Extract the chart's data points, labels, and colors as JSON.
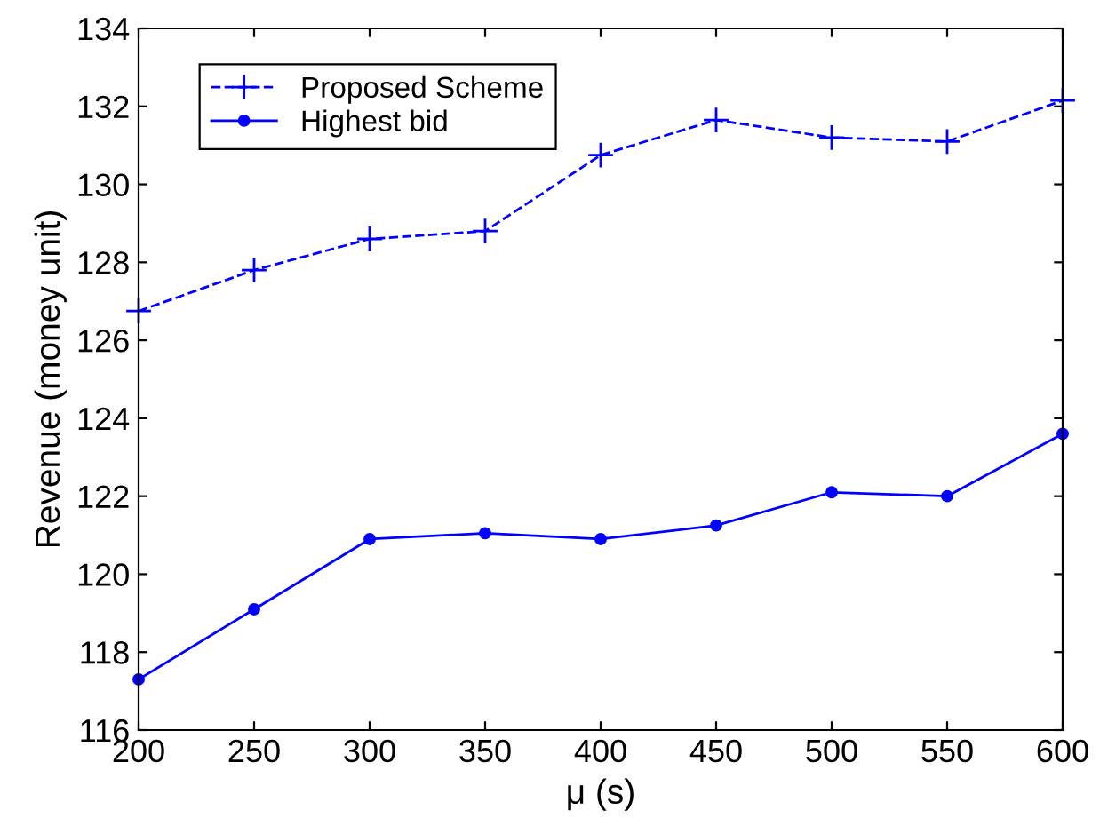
{
  "chart_data": {
    "type": "line",
    "xlabel": "μ (s)",
    "ylabel": "Revenue (money unit)",
    "x": [
      200,
      250,
      300,
      350,
      400,
      450,
      500,
      550,
      600
    ],
    "series": [
      {
        "name": "Proposed Scheme",
        "color": "#0000ff",
        "marker": "cross",
        "line_style": "dashed",
        "values": [
          126.75,
          127.8,
          128.6,
          128.8,
          130.75,
          131.65,
          131.2,
          131.1,
          132.15
        ]
      },
      {
        "name": "Highest bid",
        "color": "#0000ff",
        "marker": "circle",
        "line_style": "solid",
        "values": [
          117.3,
          119.1,
          120.9,
          121.05,
          120.9,
          121.25,
          122.1,
          122.0,
          123.6
        ]
      }
    ],
    "xlim": [
      200,
      600
    ],
    "xticks": [
      200,
      250,
      300,
      350,
      400,
      450,
      500,
      550,
      600
    ],
    "ylim": [
      116,
      134
    ],
    "yticks": [
      116,
      118,
      120,
      122,
      124,
      126,
      128,
      130,
      132,
      134
    ],
    "grid": false,
    "legend": "top left"
  }
}
